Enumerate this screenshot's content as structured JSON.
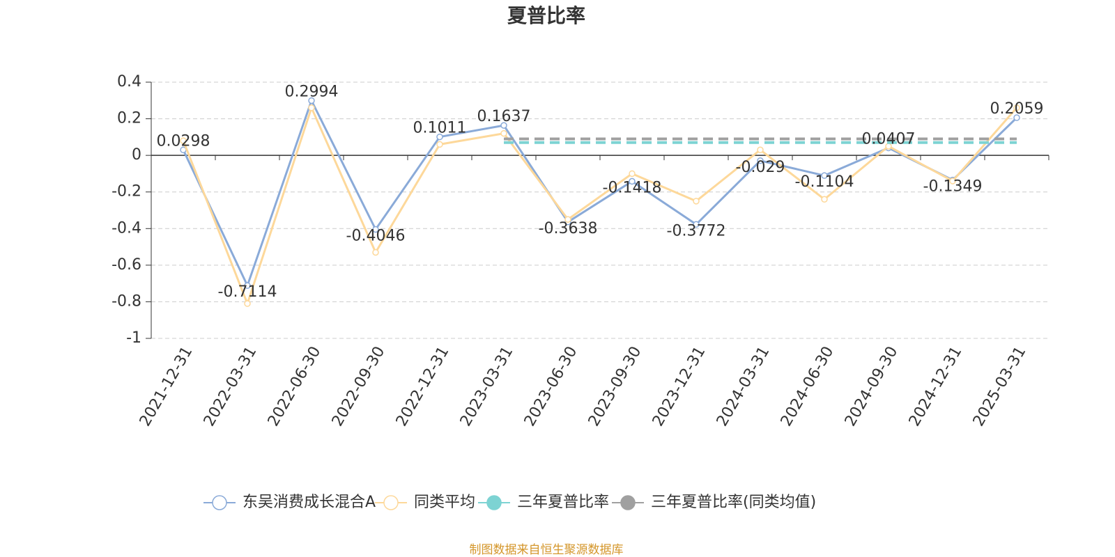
{
  "chart_data": {
    "type": "line",
    "title": "夏普比率",
    "categories": [
      "2021-12-31",
      "2022-03-31",
      "2022-06-30",
      "2022-09-30",
      "2022-12-31",
      "2023-03-31",
      "2023-06-30",
      "2023-09-30",
      "2023-12-31",
      "2024-03-31",
      "2024-06-30",
      "2024-09-30",
      "2024-12-31",
      "2025-03-31"
    ],
    "series": [
      {
        "name": "东吴消费成长混合A",
        "color": "#8aaad8",
        "style": "solid",
        "labels": true,
        "values": [
          0.0298,
          -0.7114,
          0.2994,
          -0.4046,
          0.1011,
          0.1637,
          -0.3638,
          -0.1418,
          -0.3772,
          -0.029,
          -0.1104,
          0.0407,
          -0.1349,
          0.2059
        ]
      },
      {
        "name": "同类平均",
        "color": "#fdd89a",
        "style": "solid",
        "labels": false,
        "values": [
          0.08,
          -0.81,
          0.26,
          -0.53,
          0.06,
          0.12,
          -0.35,
          -0.1,
          -0.25,
          0.03,
          -0.24,
          0.05,
          -0.14,
          0.26
        ]
      },
      {
        "name": "三年夏普比率",
        "color": "#7dd3d3",
        "style": "dashed",
        "labels": false,
        "values": [
          null,
          null,
          null,
          null,
          null,
          0.07,
          0.07,
          0.07,
          0.07,
          0.07,
          0.07,
          0.07,
          0.07,
          0.07
        ]
      },
      {
        "name": "三年夏普比率(同类均值)",
        "color": "#a0a0a0",
        "style": "dashed",
        "labels": false,
        "values": [
          null,
          null,
          null,
          null,
          null,
          0.09,
          0.09,
          0.09,
          0.09,
          0.09,
          0.09,
          0.09,
          0.09,
          0.09
        ]
      }
    ],
    "ylim": [
      -1,
      0.4
    ],
    "yticks": [
      -1,
      -0.8,
      -0.6,
      -0.4,
      -0.2,
      0,
      0.2,
      0.4
    ],
    "grid": true,
    "source": "制图数据来自恒生聚源数据库"
  }
}
